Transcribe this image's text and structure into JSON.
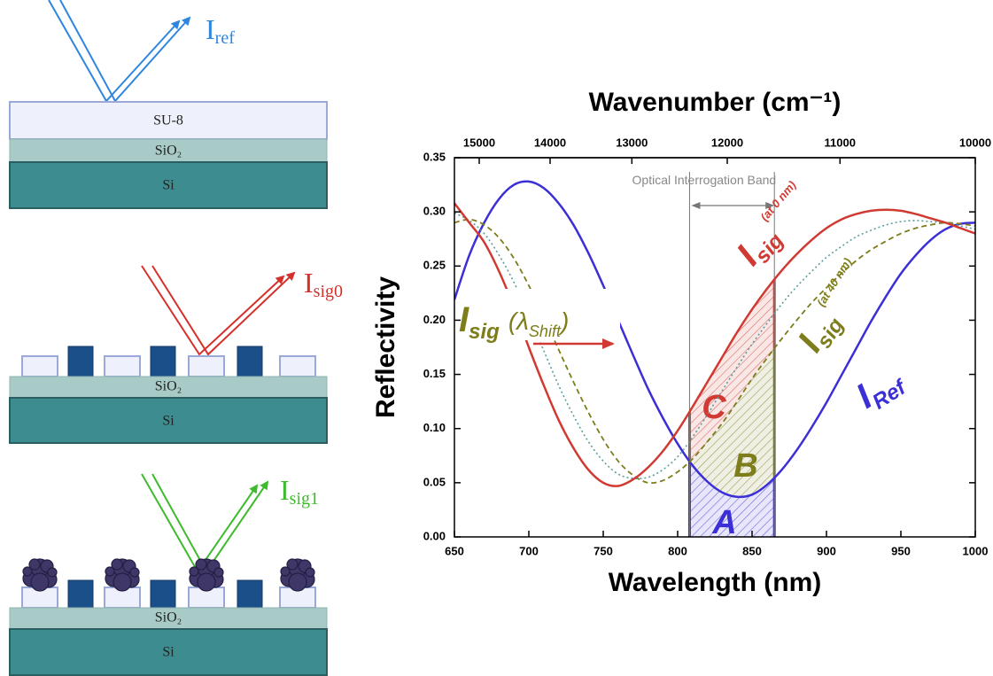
{
  "chart_data": {
    "type": "line",
    "x_title": "Wavelength (nm)",
    "x2_title": "Wavenumber (cm⁻¹)",
    "y_title": "Reflectivity",
    "xlim": [
      650,
      1000
    ],
    "xticks": [
      650,
      700,
      750,
      800,
      850,
      900,
      950,
      1000
    ],
    "x2scale": "reciprocal",
    "x2lim": [
      15385,
      10000
    ],
    "x2ticks": [
      15000,
      14000,
      13000,
      12000,
      11000,
      10000
    ],
    "ylim": [
      0,
      0.35
    ],
    "yticks": [
      {
        "value": 0,
        "label": "0.00"
      },
      0.05,
      {
        "value": 0.1,
        "label": "0.10"
      },
      0.15,
      {
        "value": 0.2,
        "label": "0.20"
      },
      0.25,
      {
        "value": 0.3,
        "label": "0.30"
      },
      0.35
    ],
    "x": [
      650,
      660,
      670,
      680,
      690,
      700,
      710,
      720,
      730,
      740,
      750,
      760,
      770,
      780,
      790,
      800,
      810,
      820,
      830,
      840,
      850,
      860,
      870,
      880,
      890,
      900,
      910,
      920,
      930,
      940,
      950,
      960,
      970,
      980,
      990,
      1000
    ],
    "series": [
      {
        "color": "#3b2fd6",
        "style": "solid",
        "width": 2.5,
        "values": [
          0.219,
          0.26,
          0.29,
          0.312,
          0.325,
          0.328,
          0.322,
          0.308,
          0.288,
          0.262,
          0.232,
          0.2,
          0.168,
          0.137,
          0.11,
          0.086,
          0.066,
          0.051,
          0.041,
          0.037,
          0.039,
          0.048,
          0.062,
          0.08,
          0.101,
          0.124,
          0.149,
          0.174,
          0.199,
          0.222,
          0.243,
          0.26,
          0.274,
          0.284,
          0.289,
          0.29
        ]
      },
      {
        "color": "#7d7d1c",
        "style": "dashed",
        "width": 1.8,
        "values": [
          0.29,
          0.293,
          0.288,
          0.276,
          0.257,
          0.232,
          0.203,
          0.173,
          0.143,
          0.115,
          0.09,
          0.07,
          0.057,
          0.05,
          0.052,
          0.06,
          0.072,
          0.088,
          0.105,
          0.125,
          0.146,
          0.165,
          0.183,
          0.2,
          0.216,
          0.23,
          0.243,
          0.255,
          0.265,
          0.273,
          0.28,
          0.285,
          0.288,
          0.29,
          0.289,
          0.287
        ]
      },
      {
        "color": "#5d9c9c",
        "style": "dotted",
        "width": 1.6,
        "values": [
          0.299,
          0.292,
          0.28,
          0.26,
          0.235,
          0.204,
          0.172,
          0.14,
          0.112,
          0.088,
          0.07,
          0.058,
          0.054,
          0.055,
          0.062,
          0.074,
          0.092,
          0.113,
          0.135,
          0.157,
          0.178,
          0.197,
          0.215,
          0.231,
          0.245,
          0.258,
          0.268,
          0.277,
          0.283,
          0.288,
          0.291,
          0.292,
          0.291,
          0.29,
          0.287,
          0.284
        ]
      },
      {
        "color": "#d13a32",
        "style": "solid",
        "width": 2.5,
        "values": [
          0.308,
          0.29,
          0.272,
          0.245,
          0.212,
          0.175,
          0.14,
          0.108,
          0.082,
          0.062,
          0.05,
          0.047,
          0.053,
          0.064,
          0.079,
          0.098,
          0.12,
          0.143,
          0.166,
          0.189,
          0.21,
          0.229,
          0.246,
          0.261,
          0.274,
          0.285,
          0.293,
          0.298,
          0.301,
          0.302,
          0.301,
          0.298,
          0.294,
          0.29,
          0.285,
          0.28
        ]
      }
    ],
    "band": {
      "label": "Optical Interrogation Band",
      "xmin": 808,
      "xmax": 865
    },
    "regions": [
      {
        "label": "A",
        "color": "#3b2fd6"
      },
      {
        "label": "B",
        "color": "#7d7d1c"
      },
      {
        "label": "C",
        "color": "#d13a32"
      }
    ],
    "annotations": {
      "sig0": {
        "main": "I",
        "sub": "sig",
        "sup": "(at 0 nm)"
      },
      "sig40": {
        "main": "I",
        "sub": "sig",
        "sup": "(at 40 nm)"
      },
      "ref": {
        "main": "I",
        "sub": "Ref"
      },
      "shift": {
        "main": "I",
        "sub": "sig",
        "open": "(λ",
        "sub2": "Shift",
        "close": ")"
      }
    }
  },
  "diagram": {
    "panels": [
      {
        "layers": [
          "SU-8",
          "SiO₂",
          "Si"
        ],
        "beam": {
          "main": "I",
          "sub": "ref"
        }
      },
      {
        "layers": [
          "SiO₂",
          "Si"
        ],
        "beam": {
          "main": "I",
          "sub": "sig0"
        }
      },
      {
        "layers": [
          "SiO₂",
          "Si"
        ],
        "beam": {
          "main": "I",
          "sub": "sig1"
        }
      }
    ]
  }
}
